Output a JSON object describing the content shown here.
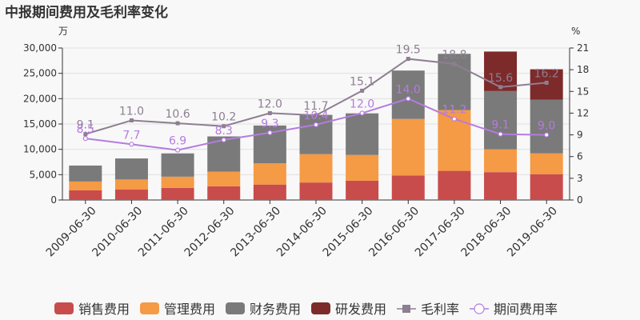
{
  "chart_data": {
    "type": "bar",
    "title": "中报期间费用及毛利率变化",
    "left_unit": "万",
    "right_unit": "%",
    "categories": [
      "2009-06-30",
      "2010-06-30",
      "2011-06-30",
      "2012-06-30",
      "2013-06-30",
      "2014-06-30",
      "2015-06-30",
      "2016-06-30",
      "2017-06-30",
      "2018-06-30",
      "2019-06-30"
    ],
    "y_left": {
      "min": 0,
      "max": 30000,
      "ticks": [
        "0",
        "5,000",
        "10,000",
        "15,000",
        "20,000",
        "25,000",
        "30,000"
      ]
    },
    "y_right": {
      "min": 0,
      "max": 21,
      "ticks": [
        "0",
        "3",
        "6",
        "9",
        "12",
        "15",
        "18",
        "21"
      ]
    },
    "series": [
      {
        "name": "销售费用",
        "kind": "bar",
        "color": "#c94c4c",
        "values": [
          1900,
          2050,
          2400,
          2700,
          3050,
          3450,
          3800,
          4850,
          5750,
          5500,
          5100
        ]
      },
      {
        "name": "管理费用",
        "kind": "bar",
        "color": "#f59a45",
        "values": [
          1750,
          2000,
          2200,
          2900,
          4200,
          5600,
          5100,
          11150,
          12000,
          4500,
          4100
        ]
      },
      {
        "name": "财务费用",
        "kind": "bar",
        "color": "#7a7a7a",
        "values": [
          3150,
          4150,
          4600,
          6950,
          7450,
          7750,
          8200,
          9550,
          11100,
          11500,
          10600
        ]
      },
      {
        "name": "研发费用",
        "kind": "bar",
        "color": "#7d2a2a",
        "values": [
          0,
          0,
          0,
          0,
          0,
          0,
          0,
          0,
          0,
          7800,
          6000
        ]
      },
      {
        "name": "毛利率",
        "kind": "line",
        "axis": "right",
        "color": "#8e7e92",
        "values": [
          9.1,
          11.0,
          10.6,
          10.2,
          12.0,
          11.7,
          15.1,
          19.5,
          18.8,
          15.6,
          16.2
        ],
        "labels": [
          "9.1",
          "11.0",
          "10.6",
          "10.2",
          "12.0",
          "11.7",
          "15.1",
          "19.5",
          "18.8",
          "15.6",
          "16.2"
        ]
      },
      {
        "name": "期间费用率",
        "kind": "line",
        "axis": "right",
        "color": "#b57be0",
        "values": [
          8.5,
          7.7,
          6.9,
          8.3,
          9.3,
          10.4,
          12.0,
          14.0,
          11.2,
          9.1,
          9.0
        ],
        "labels": [
          "8.5",
          "7.7",
          "6.9",
          "8.3",
          "9.3",
          "10.4",
          "12.0",
          "14.0",
          "11.2",
          "9.1",
          "9.0"
        ]
      }
    ],
    "grid": true,
    "legend_position": "bottom"
  }
}
